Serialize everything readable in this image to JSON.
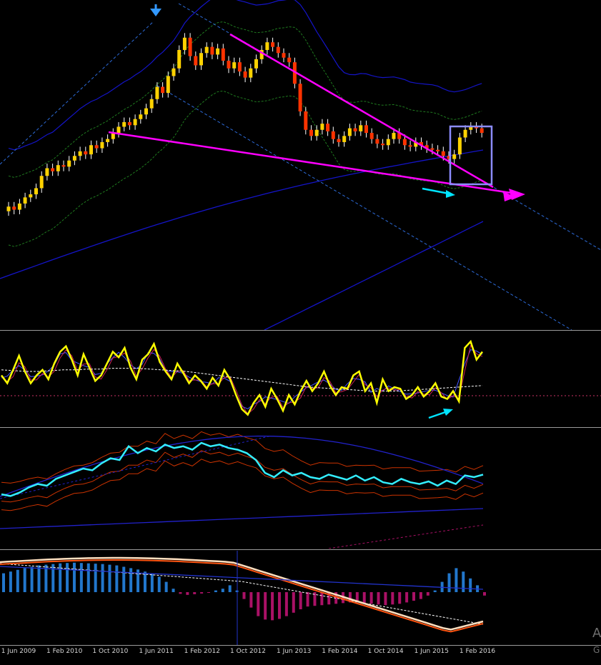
{
  "chart_data": [
    {
      "type": "candlestick",
      "panel": "price",
      "title": "",
      "grid": false,
      "colors": {
        "up": "#ffd200",
        "down": "#ff3300",
        "wick": "#ffffff",
        "trendline": "#ff00ff",
        "box": "#8c8cff",
        "arrow": "#00e5ff",
        "channel": "#2d6bd9",
        "envelope_inner": "#1f7a1f",
        "ma": "#1414c8",
        "top_marker": "#3399ff"
      },
      "x_ticks": [
        "1 Jun 2009",
        "1 Feb 2010",
        "1 Oct 2010",
        "1 Jun 2011",
        "1 Feb 2012",
        "1 Oct 2012",
        "1 Jun 2013",
        "1 Feb 2014",
        "1 Oct 2014",
        "1 Jun 2015",
        "1 Feb 2016"
      ],
      "series_close": [
        0.3,
        0.28,
        0.32,
        0.36,
        0.38,
        0.42,
        0.5,
        0.55,
        0.53,
        0.57,
        0.56,
        0.6,
        0.63,
        0.66,
        0.64,
        0.7,
        0.68,
        0.72,
        0.74,
        0.78,
        0.82,
        0.85,
        0.83,
        0.87,
        0.9,
        0.94,
        1.0,
        1.08,
        1.04,
        1.15,
        1.2,
        1.32,
        1.4,
        1.28,
        1.22,
        1.3,
        1.34,
        1.29,
        1.33,
        1.25,
        1.2,
        1.24,
        1.18,
        1.14,
        1.2,
        1.26,
        1.32,
        1.37,
        1.34,
        1.3,
        1.27,
        1.24,
        1.1,
        0.92,
        0.8,
        0.76,
        0.8,
        0.84,
        0.79,
        0.74,
        0.72,
        0.76,
        0.81,
        0.79,
        0.83,
        0.78,
        0.74,
        0.71,
        0.7,
        0.74,
        0.78,
        0.74,
        0.7,
        0.69,
        0.72,
        0.7,
        0.68,
        0.67,
        0.66,
        0.63,
        0.61,
        0.64,
        0.75,
        0.8,
        0.82,
        0.81,
        0.78
      ],
      "series_open": [
        0.27,
        0.3,
        0.28,
        0.32,
        0.36,
        0.38,
        0.42,
        0.5,
        0.55,
        0.53,
        0.57,
        0.56,
        0.6,
        0.63,
        0.66,
        0.64,
        0.7,
        0.68,
        0.72,
        0.74,
        0.78,
        0.82,
        0.85,
        0.83,
        0.87,
        0.9,
        0.94,
        1.0,
        1.08,
        1.04,
        1.15,
        1.2,
        1.32,
        1.4,
        1.28,
        1.22,
        1.3,
        1.34,
        1.29,
        1.33,
        1.25,
        1.2,
        1.24,
        1.18,
        1.14,
        1.2,
        1.26,
        1.32,
        1.37,
        1.34,
        1.3,
        1.27,
        1.24,
        1.1,
        0.92,
        0.8,
        0.76,
        0.8,
        0.84,
        0.79,
        0.74,
        0.72,
        0.76,
        0.81,
        0.79,
        0.83,
        0.78,
        0.74,
        0.71,
        0.7,
        0.74,
        0.78,
        0.74,
        0.7,
        0.69,
        0.72,
        0.7,
        0.68,
        0.67,
        0.66,
        0.63,
        0.61,
        0.64,
        0.75,
        0.8,
        0.82,
        0.81
      ]
    },
    {
      "type": "line",
      "panel": "oscillator_1",
      "series": [
        {
          "color": "#ffff00",
          "values": [
            0.55,
            0.45,
            0.62,
            0.8,
            0.6,
            0.45,
            0.55,
            0.62,
            0.5,
            0.7,
            0.85,
            0.92,
            0.75,
            0.55,
            0.82,
            0.65,
            0.48,
            0.55,
            0.7,
            0.85,
            0.78,
            0.9,
            0.65,
            0.5,
            0.75,
            0.82,
            0.95,
            0.72,
            0.6,
            0.5,
            0.7,
            0.58,
            0.45,
            0.55,
            0.48,
            0.38,
            0.52,
            0.42,
            0.62,
            0.5,
            0.3,
            0.12,
            0.05,
            0.2,
            0.3,
            0.15,
            0.38,
            0.25,
            0.1,
            0.3,
            0.18,
            0.35,
            0.48,
            0.35,
            0.45,
            0.6,
            0.42,
            0.3,
            0.4,
            0.38,
            0.55,
            0.6,
            0.35,
            0.45,
            0.2,
            0.5,
            0.35,
            0.4,
            0.38,
            0.25,
            0.3,
            0.4,
            0.28,
            0.35,
            0.45,
            0.28,
            0.25,
            0.35,
            0.22,
            0.9,
            0.98,
            0.75,
            0.85
          ]
        },
        {
          "color": "#ffffff",
          "values": [
            0.62,
            0.61,
            0.6,
            0.6,
            0.61,
            0.62,
            0.62,
            0.63,
            0.63,
            0.64,
            0.64,
            0.64,
            0.63,
            0.62,
            0.61,
            0.6,
            0.58,
            0.56,
            0.54,
            0.52,
            0.5,
            0.48,
            0.46,
            0.44,
            0.42,
            0.4,
            0.39,
            0.38,
            0.37,
            0.36,
            0.35,
            0.35,
            0.35,
            0.36,
            0.37,
            0.38,
            0.39,
            0.4,
            0.41,
            0.42
          ]
        }
      ]
    },
    {
      "type": "line",
      "panel": "oscillator_2",
      "series": [
        {
          "color": "#33eeff",
          "values": [
            0.3,
            0.28,
            0.32,
            0.38,
            0.42,
            0.4,
            0.48,
            0.52,
            0.56,
            0.6,
            0.58,
            0.66,
            0.72,
            0.7,
            0.86,
            0.78,
            0.84,
            0.8,
            0.88,
            0.84,
            0.86,
            0.82,
            0.9,
            0.86,
            0.88,
            0.84,
            0.82,
            0.78,
            0.7,
            0.55,
            0.5,
            0.58,
            0.52,
            0.55,
            0.5,
            0.48,
            0.53,
            0.5,
            0.47,
            0.52,
            0.46,
            0.5,
            0.44,
            0.42,
            0.48,
            0.44,
            0.42,
            0.45,
            0.4,
            0.46,
            0.42,
            0.52,
            0.5,
            0.53
          ]
        }
      ]
    },
    {
      "type": "bar",
      "panel": "macd",
      "values": [
        0.55,
        0.6,
        0.65,
        0.7,
        0.74,
        0.78,
        0.8,
        0.82,
        0.84,
        0.85,
        0.86,
        0.85,
        0.84,
        0.83,
        0.82,
        0.8,
        0.78,
        0.74,
        0.7,
        0.66,
        0.6,
        0.55,
        0.45,
        0.3,
        0.1,
        -0.05,
        -0.08,
        -0.06,
        -0.04,
        -0.02,
        0.05,
        0.1,
        0.2,
        0.05,
        -0.2,
        -0.45,
        -0.7,
        -0.8,
        -0.82,
        -0.78,
        -0.7,
        -0.6,
        -0.5,
        -0.42,
        -0.4,
        -0.38,
        -0.36,
        -0.34,
        -0.32,
        -0.3,
        -0.3,
        -0.32,
        -0.34,
        -0.36,
        -0.38,
        -0.36,
        -0.34,
        -0.3,
        -0.25,
        -0.2,
        -0.1,
        0.05,
        0.3,
        0.55,
        0.7,
        0.6,
        0.4,
        0.2,
        -0.1
      ],
      "colors": {
        "pos": "#2277cc",
        "neg": "#aa1166"
      }
    }
  ],
  "watermark": {
    "line1": "A",
    "line2": "G"
  }
}
